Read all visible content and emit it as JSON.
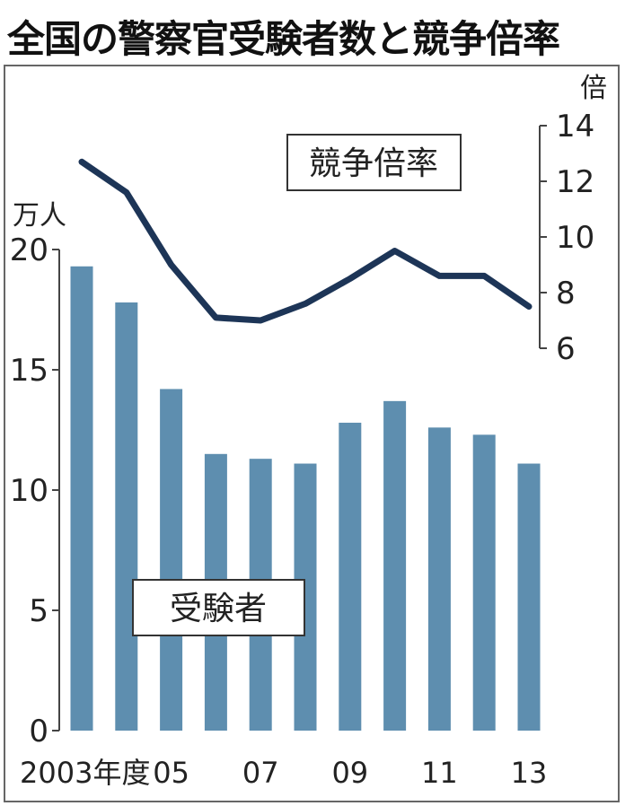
{
  "title": "全国の警察官受験者数と競争倍率",
  "chart_data": {
    "type": "bar",
    "categories": [
      "2003",
      "2004",
      "2005",
      "2006",
      "2007",
      "2008",
      "2009",
      "2010",
      "2011",
      "2012",
      "2013"
    ],
    "x_tick_labels": [
      "2003年度",
      "05",
      "07",
      "09",
      "11",
      "13"
    ],
    "y_left": {
      "unit": "万人",
      "ticks": [
        "0",
        "5",
        "10",
        "15",
        "20"
      ],
      "ylim": [
        0,
        20
      ]
    },
    "y_right": {
      "unit": "倍",
      "ticks": [
        "6",
        "8",
        "10",
        "12",
        "14"
      ],
      "ylim": [
        6,
        14
      ]
    },
    "series": [
      {
        "name": "受験者",
        "kind": "bar",
        "axis": "left",
        "color": "#5e8eaf",
        "values": [
          19.3,
          17.8,
          14.2,
          11.5,
          11.3,
          11.1,
          12.8,
          13.7,
          12.6,
          12.3,
          11.1
        ]
      },
      {
        "name": "競争倍率",
        "kind": "line",
        "axis": "right",
        "color": "#1d3557",
        "values": [
          12.7,
          11.6,
          9.0,
          7.1,
          7.0,
          7.6,
          8.5,
          9.5,
          8.6,
          8.6,
          7.5
        ]
      }
    ],
    "grid": false
  }
}
